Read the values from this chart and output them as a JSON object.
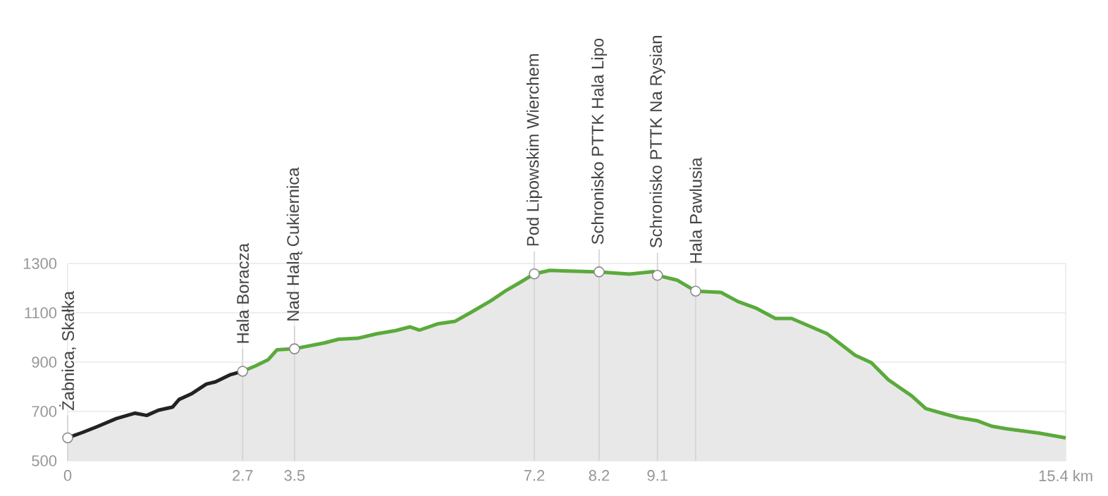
{
  "chart_data": {
    "type": "area",
    "series": [
      {
        "color": "#222222",
        "x": [
          0,
          0.23,
          0.45,
          0.75,
          1.04,
          1.22,
          1.4,
          1.62,
          1.72,
          1.92,
          2.14,
          2.28,
          2.5,
          2.7
        ],
        "values": [
          593,
          615,
          638,
          671,
          693,
          684,
          705,
          718,
          749,
          773,
          811,
          820,
          848,
          863
        ]
      },
      {
        "color": "#5aaa3c",
        "x": [
          2.7,
          2.9,
          3.09,
          3.23,
          3.49,
          3.96,
          4.18,
          4.48,
          4.77,
          5.06,
          5.28,
          5.43,
          5.72,
          5.98,
          6.23,
          6.53,
          6.75,
          6.96,
          7.2,
          7.44,
          7.66,
          8.2,
          8.67,
          9.04,
          9.1,
          9.4,
          9.69,
          10.08,
          10.34,
          10.63,
          10.92,
          11.17,
          11.5,
          11.72,
          12.15,
          12.4,
          12.66,
          13.02,
          13.24,
          13.53,
          13.75,
          14.04,
          14.26,
          14.48,
          14.99,
          15.4
        ],
        "values": [
          863,
          885,
          909,
          950,
          954,
          978,
          993,
          997,
          1015,
          1028,
          1043,
          1030,
          1056,
          1066,
          1103,
          1149,
          1188,
          1220,
          1258,
          1272,
          1270,
          1266,
          1257,
          1267,
          1252,
          1233,
          1188,
          1183,
          1146,
          1118,
          1077,
          1077,
          1040,
          1015,
          928,
          898,
          829,
          764,
          712,
          690,
          675,
          662,
          640,
          630,
          612,
          593
        ]
      }
    ],
    "annotations": [
      {
        "text": "Żabnica, Skałka",
        "x": 0,
        "y": 593
      },
      {
        "text": "Hala Boracza",
        "x": 2.7,
        "y": 863
      },
      {
        "text": "Nad Halą Cukiernica",
        "x": 3.5,
        "y": 954
      },
      {
        "text": "Pod Lipowskim Wierchem",
        "x": 7.2,
        "y": 1258
      },
      {
        "text": "Schronisko PTTK Hala Lipo",
        "x": 8.2,
        "y": 1266
      },
      {
        "text": "Schronisko PTTK Na Rysian",
        "x": 9.1,
        "y": 1252
      },
      {
        "text": "Hala Pawlusia",
        "x": 9.69,
        "y": 1188
      }
    ],
    "xlim": [
      0,
      15.4
    ],
    "ylim": [
      500,
      1300
    ],
    "xticks": [
      0,
      2.7,
      3.5,
      7.2,
      8.2,
      9.1,
      {
        "value": 15.4,
        "label": "15.4 km"
      }
    ],
    "yticks": [
      500,
      700,
      900,
      1100,
      1300
    ],
    "grid": true,
    "line_style": "solid"
  }
}
